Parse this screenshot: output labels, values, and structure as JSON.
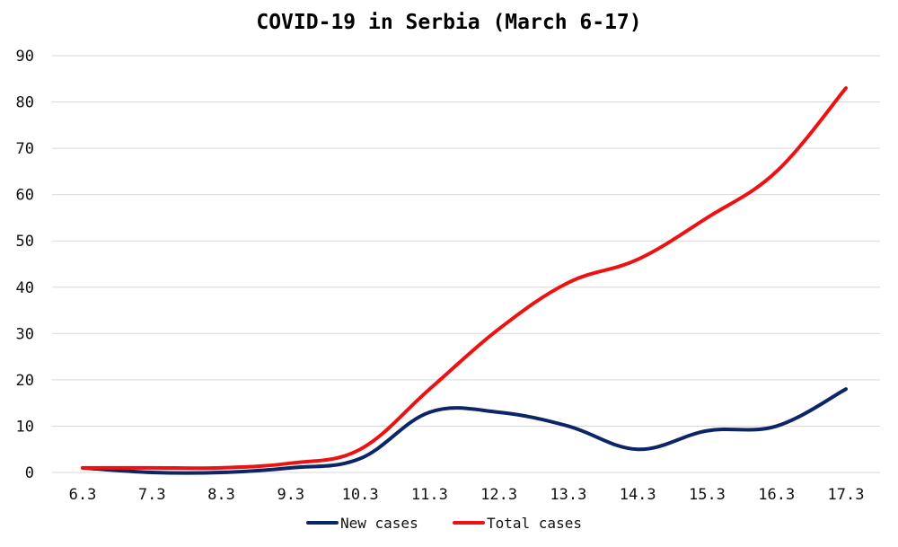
{
  "chart_data": {
    "type": "line",
    "title": "COVID-19 in Serbia (March 6-17)",
    "categories": [
      "6.3",
      "7.3",
      "8.3",
      "9.3",
      "10.3",
      "11.3",
      "12.3",
      "13.3",
      "14.3",
      "15.3",
      "16.3",
      "17.3"
    ],
    "series": [
      {
        "name": "New cases",
        "values": [
          1,
          0,
          0,
          1,
          3,
          13,
          13,
          10,
          5,
          9,
          10,
          18
        ],
        "color": "#0b2566"
      },
      {
        "name": "Total cases",
        "values": [
          1,
          1,
          1,
          2,
          5,
          18,
          31,
          41,
          46,
          55,
          65,
          83
        ],
        "color": "#ee1111"
      }
    ],
    "ylim": [
      0,
      90
    ],
    "yticks": [
      0,
      10,
      20,
      30,
      40,
      50,
      60,
      70,
      80,
      90
    ],
    "grid": true,
    "legend_position": "bottom",
    "smooth": true
  }
}
